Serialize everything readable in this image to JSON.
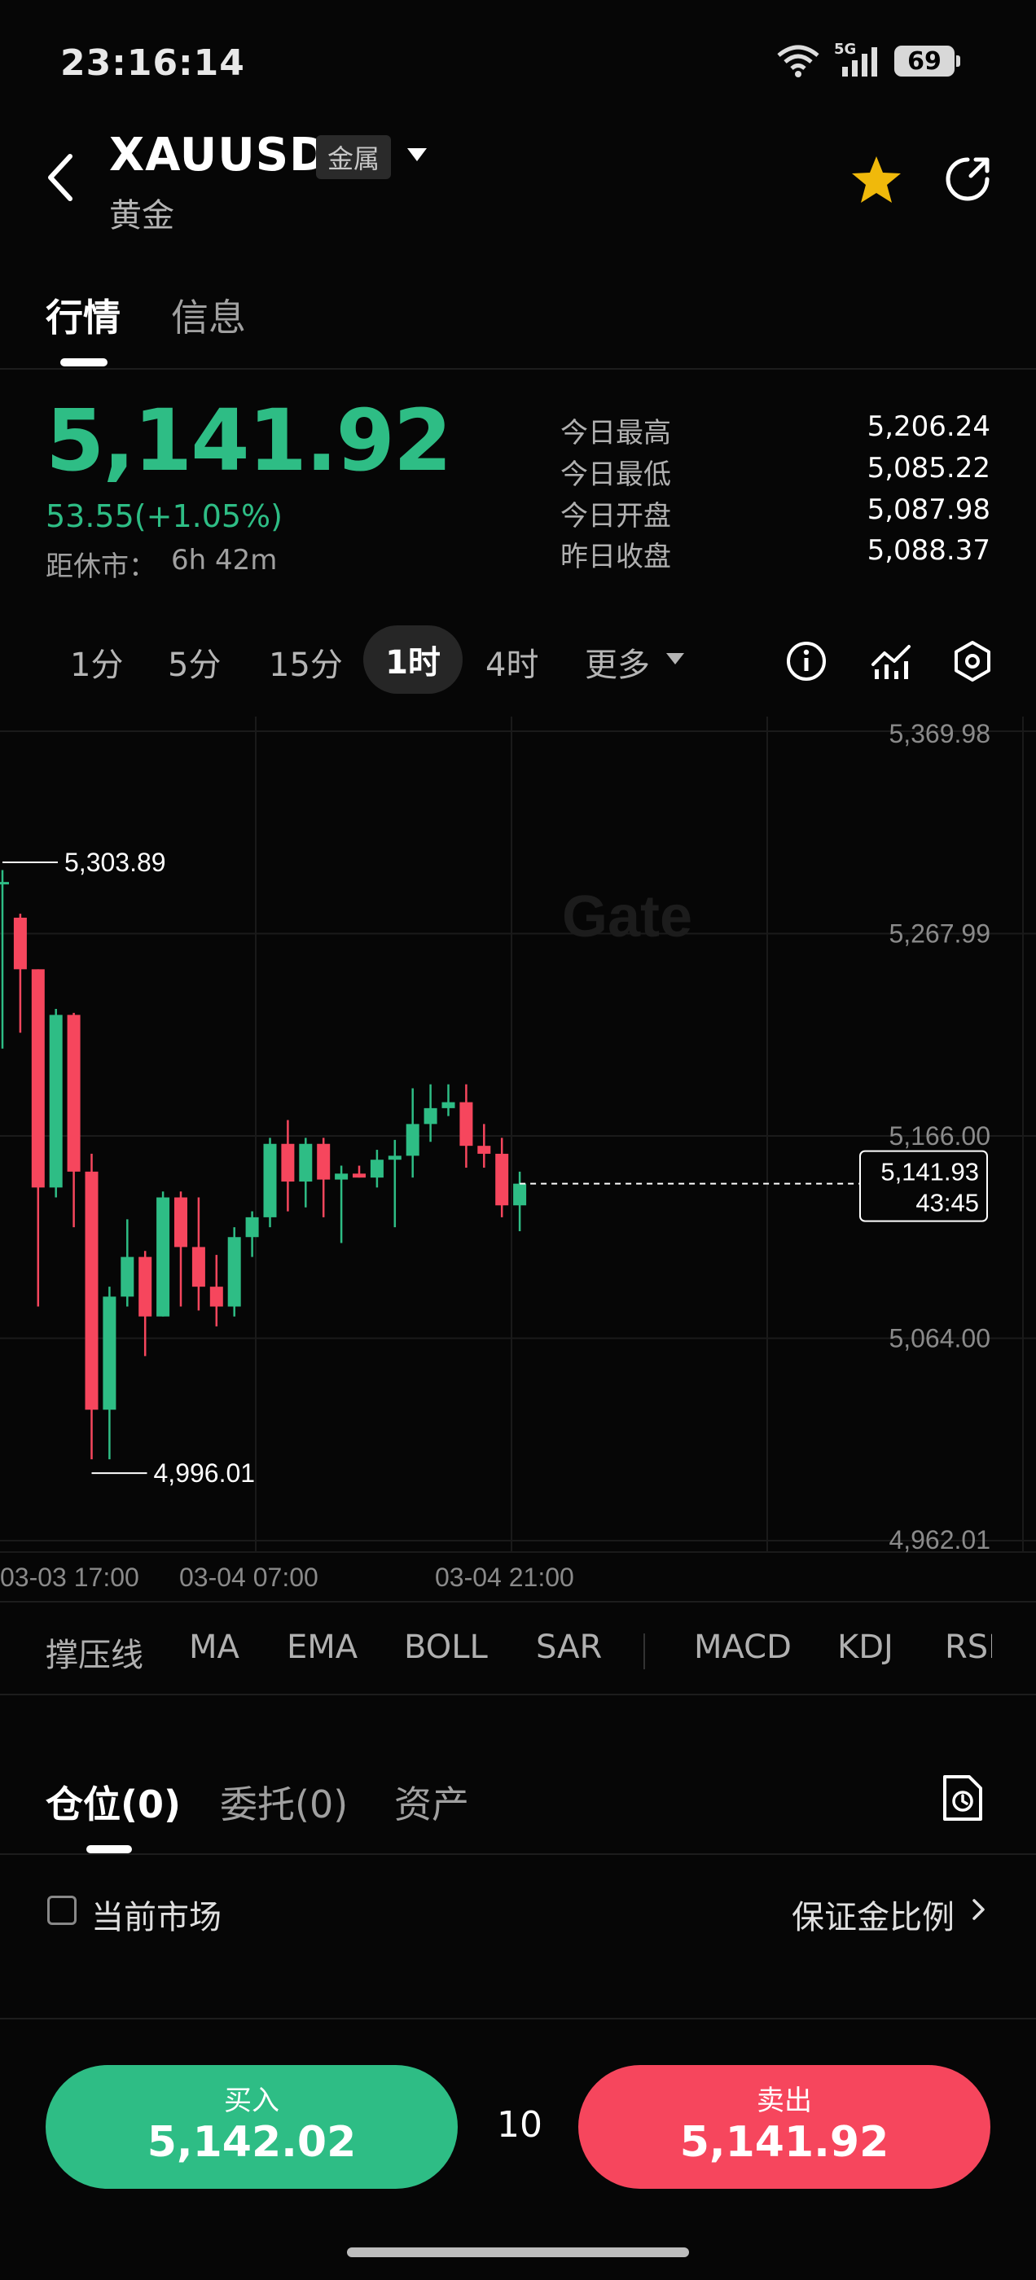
{
  "status": {
    "time": "23:16:14",
    "network": "5G",
    "battery": "69"
  },
  "header": {
    "symbol": "XAUUSD",
    "tag": "金属",
    "name": "黄金"
  },
  "tabs": [
    {
      "label": "行情"
    },
    {
      "label": "信息"
    }
  ],
  "price": {
    "last": "5,141.92",
    "change": "53.55(+1.05%)",
    "countdown_label": "距休市：",
    "countdown_value": "6h 42m"
  },
  "stats": [
    {
      "label": "今日最高",
      "value": "5,206.24"
    },
    {
      "label": "今日最低",
      "value": "5,085.22"
    },
    {
      "label": "今日开盘",
      "value": "5,087.98"
    },
    {
      "label": "昨日收盘",
      "value": "5,088.37"
    }
  ],
  "intervals": {
    "m1": "1分",
    "m5": "5分",
    "m15": "15分",
    "h1": "1时",
    "h4": "4时",
    "more": "更多"
  },
  "colors": {
    "up": "#2ebd85",
    "down": "#f6465d",
    "bg": "#060606"
  },
  "chart_data": {
    "type": "candlestick",
    "interval": "1时",
    "y_ticks": [
      "5,369.98",
      "5,267.99",
      "5,166.00",
      "5,064.00",
      "4,962.01"
    ],
    "ylim": [
      4962.01,
      5369.98
    ],
    "x_ticks": [
      "03-03 17:00",
      "03-04 07:00",
      "03-04 21:00"
    ],
    "high_marker": "5,303.89",
    "low_marker": "4,996.01",
    "current_price": "5,141.93",
    "candle_countdown": "43:45",
    "watermark": "Gate",
    "candles": [
      [
        5294,
        5294,
        5300,
        5210
      ],
      [
        5276,
        5250,
        5278,
        5218
      ],
      [
        5250,
        5140,
        5250,
        5080
      ],
      [
        5140,
        5227,
        5230,
        5135
      ],
      [
        5227,
        5148,
        5228,
        5120
      ],
      [
        5148,
        5028,
        5157,
        5003
      ],
      [
        5028,
        5085,
        5090,
        5003
      ],
      [
        5085,
        5105,
        5124,
        5080
      ],
      [
        5105,
        5075,
        5108,
        5055
      ],
      [
        5075,
        5135,
        5138,
        5075
      ],
      [
        5135,
        5110,
        5138,
        5080
      ],
      [
        5110,
        5090,
        5135,
        5078
      ],
      [
        5090,
        5080,
        5106,
        5070
      ],
      [
        5080,
        5115,
        5120,
        5075
      ],
      [
        5115,
        5125,
        5128,
        5105
      ],
      [
        5125,
        5162,
        5165,
        5120
      ],
      [
        5162,
        5143,
        5174,
        5128
      ],
      [
        5143,
        5162,
        5165,
        5130
      ],
      [
        5162,
        5144,
        5165,
        5125
      ],
      [
        5144,
        5147,
        5151,
        5112
      ],
      [
        5147,
        5145,
        5151,
        5145
      ],
      [
        5145,
        5154,
        5159,
        5140
      ],
      [
        5154,
        5156,
        5164,
        5120
      ],
      [
        5156,
        5172,
        5190,
        5145
      ],
      [
        5172,
        5180,
        5192,
        5163
      ],
      [
        5180,
        5183,
        5192,
        5176
      ],
      [
        5183,
        5161,
        5192,
        5150
      ],
      [
        5161,
        5157,
        5172,
        5150
      ],
      [
        5157,
        5131,
        5165,
        5125
      ],
      [
        5131,
        5141.93,
        5148,
        5118
      ]
    ]
  },
  "indicators": {
    "support": "撑压线",
    "ma": "MA",
    "ema": "EMA",
    "boll": "BOLL",
    "sar": "SAR",
    "macd": "MACD",
    "kdj": "KDJ",
    "rsi": "RSI"
  },
  "positions": {
    "tab_positions": "仓位(0)",
    "tab_orders": "委托(0)",
    "tab_assets": "资产",
    "current_market": "当前市场",
    "margin_ratio": "保证金比例"
  },
  "trade": {
    "buy_label": "买入",
    "buy_price": "5,142.02",
    "quantity": "10",
    "sell_label": "卖出",
    "sell_price": "5,141.92"
  }
}
